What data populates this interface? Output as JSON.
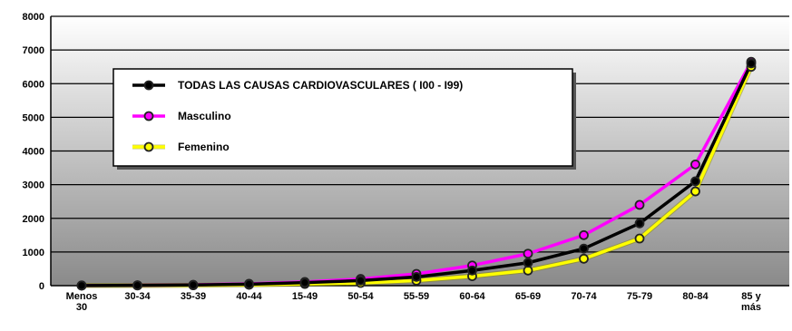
{
  "chart_data": {
    "type": "line",
    "title": "",
    "xlabel": "",
    "ylabel": "",
    "ylim": [
      0,
      8000
    ],
    "yticks": [
      "0",
      "1000",
      "2000",
      "3000",
      "4000",
      "5000",
      "6000",
      "7000",
      "8000"
    ],
    "categories": [
      [
        "Menos",
        "30"
      ],
      [
        "30-34"
      ],
      [
        "35-39"
      ],
      [
        "40-44"
      ],
      [
        "15-49"
      ],
      [
        "50-54"
      ],
      [
        "55-59"
      ],
      [
        "60-64"
      ],
      [
        "65-69"
      ],
      [
        "70-74"
      ],
      [
        "75-79"
      ],
      [
        "80-84"
      ],
      [
        "85 y",
        "más"
      ]
    ],
    "grid": true,
    "legend_position": "upper-left",
    "series": [
      {
        "name": "TODAS LAS CAUSAS CARDIOVASCULARES ( I00 - I99)",
        "color": "#000000",
        "values": [
          5,
          10,
          20,
          45,
          90,
          150,
          260,
          450,
          680,
          1100,
          1850,
          3100,
          6600
        ]
      },
      {
        "name": "Masculino",
        "color": "#ff00ff",
        "values": [
          5,
          10,
          25,
          55,
          110,
          200,
          350,
          600,
          950,
          1500,
          2400,
          3600,
          6650
        ]
      },
      {
        "name": "Femenino",
        "color": "#ffff00",
        "values": [
          3,
          5,
          10,
          25,
          50,
          80,
          150,
          280,
          450,
          800,
          1400,
          2800,
          6500
        ]
      }
    ]
  }
}
